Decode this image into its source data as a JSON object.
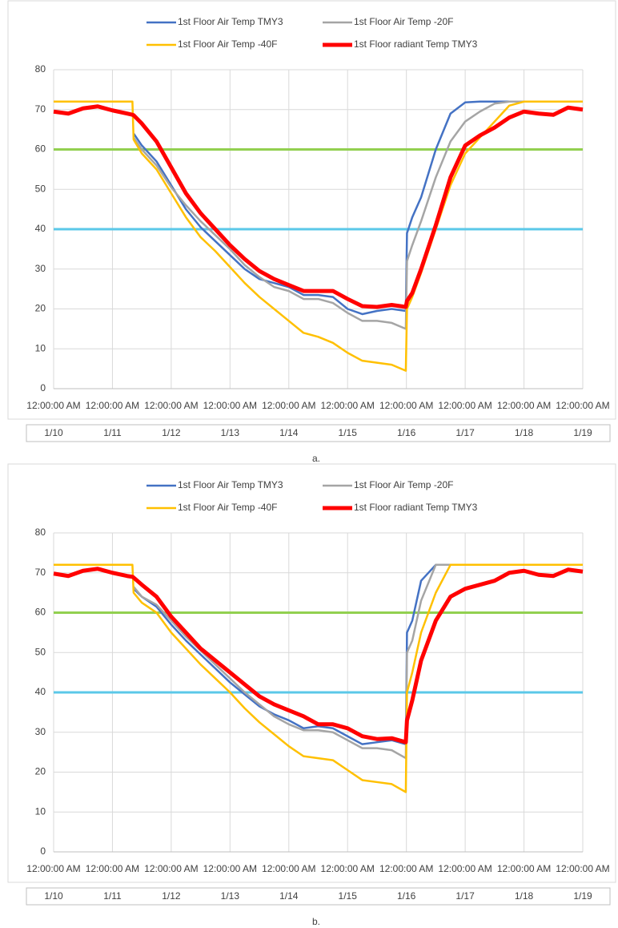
{
  "chart_data": [
    {
      "type": "line",
      "caption": "a.",
      "x": [
        0,
        0.25,
        0.5,
        0.75,
        1,
        1.25,
        1.34,
        1.36,
        1.5,
        1.75,
        2,
        2.25,
        2.5,
        2.75,
        3,
        3.25,
        3.5,
        3.75,
        4,
        4.25,
        4.5,
        4.75,
        5,
        5.25,
        5.5,
        5.75,
        5.99,
        6.01,
        6.1,
        6.25,
        6.5,
        6.75,
        7,
        7.25,
        7.5,
        7.75,
        8,
        8.25,
        8.5,
        8.75,
        9
      ],
      "xlim": [
        0,
        9
      ],
      "xticks": [
        {
          "value": 0,
          "label": "12:00:00 AM"
        },
        {
          "value": 1,
          "label": "12:00:00 AM"
        },
        {
          "value": 2,
          "label": "12:00:00 AM"
        },
        {
          "value": 3,
          "label": "12:00:00 AM"
        },
        {
          "value": 4,
          "label": "12:00:00 AM"
        },
        {
          "value": 5,
          "label": "12:00:00 AM"
        },
        {
          "value": 6,
          "label": "12:00:00 AM"
        },
        {
          "value": 7,
          "label": "12:00:00 AM"
        },
        {
          "value": 8,
          "label": "12:00:00 AM"
        },
        {
          "value": 9,
          "label": "12:00:00 AM"
        }
      ],
      "x_dates": [
        "1/10",
        "1/11",
        "1/12",
        "1/13",
        "1/14",
        "1/15",
        "1/16",
        "1/17",
        "1/18",
        "1/19"
      ],
      "ylim": [
        0,
        80
      ],
      "yticks": [
        0,
        10,
        20,
        30,
        40,
        50,
        60,
        70,
        80
      ],
      "grid": true,
      "reference_lines": [
        {
          "value": 60,
          "color": "#92d050"
        },
        {
          "value": 40,
          "color": "#5bc8e8"
        }
      ],
      "series": [
        {
          "name": "1st Floor Air Temp TMY3",
          "color": "#4472c4",
          "values": [
            null,
            null,
            null,
            null,
            null,
            null,
            null,
            64,
            61,
            57,
            51,
            45,
            40.5,
            37,
            33.5,
            30,
            27.5,
            26.5,
            25.5,
            23.5,
            23.5,
            23,
            20,
            18.7,
            19.5,
            20,
            19.5,
            39,
            43,
            48,
            60,
            69,
            71.8,
            72,
            72,
            72,
            72,
            72,
            72,
            72,
            72
          ]
        },
        {
          "name": "1st Floor Air Temp -20F",
          "color": "#a5a5a5",
          "values": [
            null,
            null,
            null,
            null,
            null,
            null,
            null,
            63,
            60,
            56,
            50.5,
            46,
            42,
            38.5,
            35,
            31,
            28,
            25.5,
            24.5,
            22.5,
            22.5,
            21.5,
            19,
            17,
            17,
            16.5,
            15,
            32,
            36,
            42,
            53,
            62,
            67,
            69.5,
            71.5,
            72,
            72,
            72,
            72,
            72,
            72
          ]
        },
        {
          "name": "1st Floor Air Temp -40F",
          "color": "#ffc000",
          "values": [
            72,
            72,
            72,
            72,
            72,
            72,
            72,
            62.5,
            59,
            55,
            49,
            43,
            38,
            34.5,
            30.5,
            26.5,
            23,
            20,
            17,
            14,
            13,
            11.5,
            9,
            7,
            6.5,
            6,
            4.5,
            20,
            23,
            29,
            40,
            51,
            59,
            63,
            67,
            71,
            72,
            72,
            72,
            72,
            72
          ]
        },
        {
          "name": "1st Floor radiant Temp TMY3",
          "color": "#ff0000",
          "values": [
            69.5,
            69,
            70.3,
            70.8,
            69.8,
            69,
            68.7,
            68.6,
            66.5,
            62,
            55.5,
            49,
            44,
            40,
            36,
            32.5,
            29.5,
            27.5,
            26,
            24.5,
            24.5,
            24.5,
            22.5,
            20.7,
            20.5,
            21,
            20.5,
            22,
            24,
            30,
            41,
            53,
            61,
            63.5,
            65.5,
            68,
            69.5,
            69,
            68.7,
            70.5,
            70
          ]
        }
      ]
    },
    {
      "type": "line",
      "caption": "b.",
      "x": [
        0,
        0.25,
        0.5,
        0.75,
        1,
        1.25,
        1.34,
        1.36,
        1.5,
        1.75,
        2,
        2.25,
        2.5,
        2.75,
        3,
        3.25,
        3.5,
        3.75,
        4,
        4.25,
        4.5,
        4.75,
        5,
        5.25,
        5.5,
        5.75,
        5.99,
        6.01,
        6.1,
        6.25,
        6.5,
        6.75,
        7,
        7.25,
        7.5,
        7.75,
        8,
        8.25,
        8.5,
        8.75,
        9
      ],
      "xlim": [
        0,
        9
      ],
      "xticks": [
        {
          "value": 0,
          "label": "12:00:00 AM"
        },
        {
          "value": 1,
          "label": "12:00:00 AM"
        },
        {
          "value": 2,
          "label": "12:00:00 AM"
        },
        {
          "value": 3,
          "label": "12:00:00 AM"
        },
        {
          "value": 4,
          "label": "12:00:00 AM"
        },
        {
          "value": 5,
          "label": "12:00:00 AM"
        },
        {
          "value": 6,
          "label": "12:00:00 AM"
        },
        {
          "value": 7,
          "label": "12:00:00 AM"
        },
        {
          "value": 8,
          "label": "12:00:00 AM"
        },
        {
          "value": 9,
          "label": "12:00:00 AM"
        }
      ],
      "x_dates": [
        "1/10",
        "1/11",
        "1/12",
        "1/13",
        "1/14",
        "1/15",
        "1/16",
        "1/17",
        "1/18",
        "1/19"
      ],
      "ylim": [
        0,
        80
      ],
      "yticks": [
        0,
        10,
        20,
        30,
        40,
        50,
        60,
        70,
        80
      ],
      "grid": true,
      "reference_lines": [
        {
          "value": 60,
          "color": "#92d050"
        },
        {
          "value": 40,
          "color": "#5bc8e8"
        }
      ],
      "series": [
        {
          "name": "1st Floor Air Temp TMY3",
          "color": "#4472c4",
          "values": [
            null,
            null,
            null,
            null,
            null,
            null,
            null,
            66,
            64,
            61.5,
            57,
            53,
            49.5,
            46,
            42.5,
            39.5,
            36.5,
            34.5,
            33,
            31,
            31.5,
            31,
            29,
            27,
            27.5,
            28,
            27,
            55,
            58,
            68,
            72,
            72,
            72,
            72,
            72,
            72,
            72,
            72,
            72,
            72,
            72
          ]
        },
        {
          "name": "1st Floor Air Temp -20F",
          "color": "#a5a5a5",
          "values": [
            null,
            null,
            null,
            null,
            null,
            null,
            null,
            66.5,
            64,
            62,
            58,
            54,
            50.5,
            47,
            43.5,
            40,
            37,
            34,
            32,
            30.5,
            30.5,
            30,
            28,
            26,
            26,
            25.5,
            23.5,
            50,
            53,
            63,
            72,
            72,
            72,
            72,
            72,
            72,
            72,
            72,
            72,
            72,
            72
          ]
        },
        {
          "name": "1st Floor Air Temp -40F",
          "color": "#ffc000",
          "values": [
            72,
            72,
            72,
            72,
            72,
            72,
            72,
            65,
            62.5,
            60,
            55,
            51,
            47,
            43.5,
            40,
            36,
            32.5,
            29.5,
            26.5,
            24,
            23.5,
            23,
            20.5,
            18,
            17.5,
            17,
            15,
            40,
            45,
            55,
            65,
            72,
            72,
            72,
            72,
            72,
            72,
            72,
            72,
            72,
            72
          ]
        },
        {
          "name": "1st Floor radiant Temp TMY3",
          "color": "#ff0000",
          "values": [
            69.8,
            69.2,
            70.5,
            71,
            70,
            69.2,
            69,
            68.8,
            67,
            64,
            59,
            55,
            51,
            48,
            45,
            42,
            39,
            37,
            35.5,
            34,
            32,
            32,
            31,
            29,
            28.3,
            28.5,
            27.5,
            33,
            38,
            48,
            58,
            64,
            66,
            67,
            68,
            70,
            70.5,
            69.5,
            69.2,
            70.8,
            70.3
          ]
        }
      ]
    }
  ]
}
